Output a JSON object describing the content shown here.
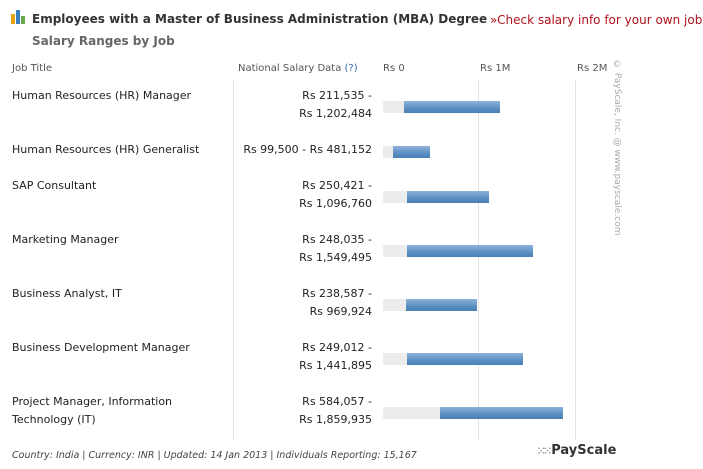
{
  "header": {
    "title": "Employees with a Master of Business Administration (MBA) Degree",
    "subtitle": "Salary Ranges by Job",
    "link": "Check salary info for your own job",
    "link_prefix": "»"
  },
  "columns": {
    "job": "Job Title",
    "salary": "National Salary Data",
    "help": "(?)"
  },
  "chart_data": {
    "type": "bar",
    "subtype": "floating-range",
    "xlim": [
      0,
      2000000
    ],
    "tick_labels": [
      "Rs 0",
      "Rs 1M",
      "Rs 2M"
    ],
    "grid": true,
    "categories": [
      "Human Resources (HR) Manager",
      "Human Resources (HR) Generalist",
      "SAP Consultant",
      "Marketing Manager",
      "Business Analyst, IT",
      "Business Development Manager",
      "Project Manager, Information Technology (IT)"
    ],
    "low": [
      211535,
      99500,
      250421,
      248035,
      238587,
      249012,
      584057
    ],
    "high": [
      1202484,
      481152,
      1096760,
      1549495,
      969924,
      1441895,
      1859935
    ],
    "labels_low": [
      "Rs 211,535 -",
      "Rs 99,500 - Rs 481,152",
      "Rs 250,421 -",
      "Rs 248,035 -",
      "Rs 238,587 -",
      "Rs 249,012 -",
      "Rs 584,057 -"
    ],
    "labels_high": [
      "Rs 1,202,484",
      "",
      "Rs 1,096,760",
      "Rs 1,549,495",
      "Rs 969,924",
      "Rs 1,441,895",
      "Rs 1,859,935"
    ],
    "bar_color": "#5b8fc3"
  },
  "footer": "Country: India | Currency: INR | Updated: 14 Jan 2013 | Individuals Reporting: 15,167",
  "watermark": "© PayScale, Inc. @ www.payscale.com",
  "brand": "PayScale"
}
